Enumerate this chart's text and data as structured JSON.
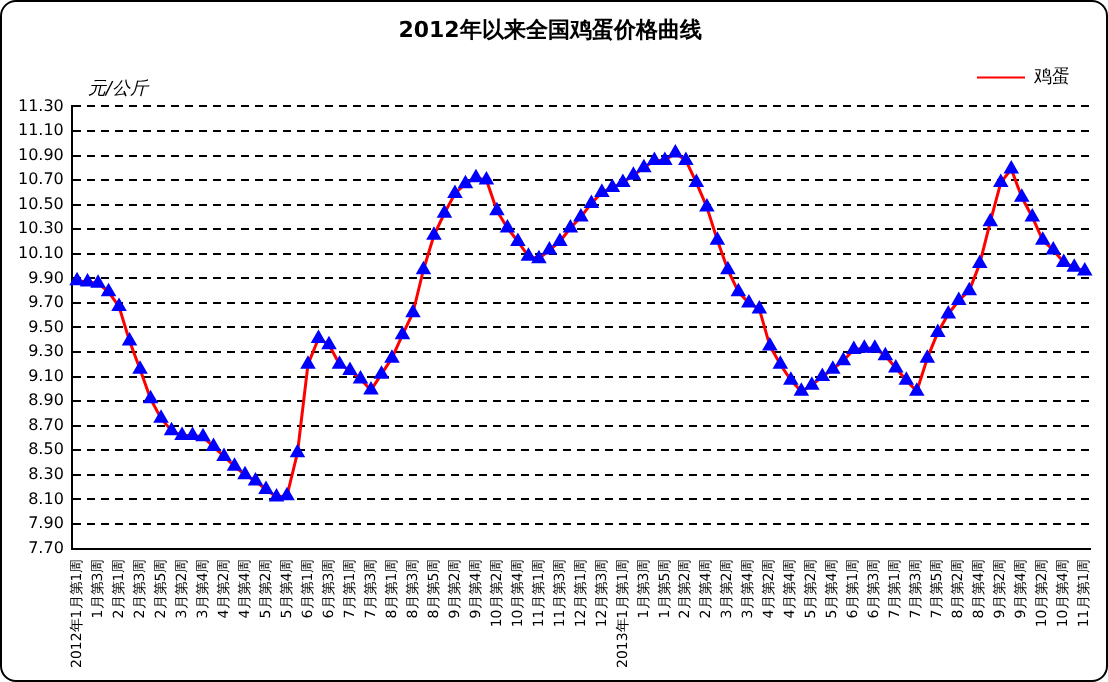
{
  "chart_data": {
    "type": "line",
    "title": "2012年以来全国鸡蛋价格曲线",
    "ylabel": "元/公斤",
    "categories": [
      "2012年1月第1周",
      null,
      "1月第3周",
      null,
      "2月第1周",
      null,
      "2月第3周",
      null,
      "2月第5周",
      null,
      "3月第2周",
      null,
      "3月第4周",
      null,
      "4月第2周",
      null,
      "4月第4周",
      null,
      "5月第2周",
      null,
      "5月第4周",
      null,
      "6月第1周",
      null,
      "6月第3周",
      null,
      "7月第1周",
      null,
      "7月第3周",
      null,
      "8月第1周",
      null,
      "8月第3周",
      null,
      "8月第5周",
      null,
      "9月第2周",
      null,
      "9月第4周",
      null,
      "10月第2周",
      null,
      "10月第4周",
      null,
      "11月第1周",
      null,
      "11月第3周",
      null,
      "12月第1周",
      null,
      "12月第3周",
      null,
      "2013年1月第1周",
      null,
      "1月第3周",
      null,
      "1月第5周",
      null,
      "2月第2周",
      null,
      "2月第4周",
      null,
      "3月第2周",
      null,
      "3月第4周",
      null,
      "4月第2周",
      null,
      "4月第4周",
      null,
      "5月第2周",
      null,
      "5月第4周",
      null,
      "6月第1周",
      null,
      "6月第3周",
      null,
      "7月第1周",
      null,
      "7月第3周",
      null,
      "7月第5周",
      null,
      "8月第2周",
      null,
      "8月第4周",
      null,
      "9月第2周",
      null,
      "9月第4周",
      null,
      "10月第2周",
      null,
      "10月第4周",
      null,
      "11月第1周"
    ],
    "series": [
      {
        "name": "鸡蛋",
        "color": "#0000ff",
        "values": [
          9.88,
          9.87,
          9.86,
          9.79,
          9.67,
          9.39,
          9.16,
          8.92,
          8.76,
          8.66,
          8.62,
          8.62,
          8.61,
          8.53,
          8.45,
          8.37,
          8.3,
          8.25,
          8.18,
          8.12,
          8.13,
          8.48,
          9.2,
          9.41,
          9.36,
          9.2,
          9.15,
          9.08,
          8.99,
          9.12,
          9.25,
          9.44,
          9.62,
          9.97,
          10.25,
          10.43,
          10.59,
          10.67,
          10.72,
          10.7,
          10.45,
          10.31,
          10.2,
          10.08,
          10.06,
          10.13,
          10.2,
          10.31,
          10.4,
          10.51,
          10.6,
          10.64,
          10.68,
          10.74,
          10.8,
          10.86,
          10.86,
          10.92,
          10.86,
          10.68,
          10.48,
          10.21,
          9.97,
          9.79,
          9.7,
          9.65,
          9.35,
          9.2,
          9.07,
          8.98,
          9.03,
          9.1,
          9.16,
          9.23,
          9.32,
          9.33,
          9.33,
          9.27,
          9.17,
          9.07,
          8.98,
          9.25,
          9.46,
          9.61,
          9.72,
          9.8,
          10.02,
          10.36,
          10.68,
          10.79,
          10.56,
          10.4,
          10.21,
          10.13,
          10.03,
          9.99,
          9.96
        ]
      }
    ],
    "ylim": [
      7.7,
      11.3
    ],
    "yticks": [
      {
        "value": 7.7,
        "label": "7.70"
      },
      {
        "value": 7.9,
        "label": "7.90"
      },
      {
        "value": 8.1,
        "label": "8.10"
      },
      {
        "value": 8.3,
        "label": "8.30"
      },
      {
        "value": 8.5,
        "label": "8.50"
      },
      {
        "value": 8.7,
        "label": "8.70"
      },
      {
        "value": 8.9,
        "label": "8.90"
      },
      {
        "value": 9.1,
        "label": "9.10"
      },
      {
        "value": 9.3,
        "label": "9.30"
      },
      {
        "value": 9.5,
        "label": "9.50"
      },
      {
        "value": 9.7,
        "label": "9.70"
      },
      {
        "value": 9.9,
        "label": "9.90"
      },
      {
        "value": 10.1,
        "label": "10.10"
      },
      {
        "value": 10.3,
        "label": "10.30"
      },
      {
        "value": 10.5,
        "label": "10.50"
      },
      {
        "value": 10.7,
        "label": "10.70"
      },
      {
        "value": 10.9,
        "label": "10.90"
      },
      {
        "value": 11.1,
        "label": "11.10"
      },
      {
        "value": 11.3,
        "label": "11.30"
      }
    ],
    "grid": "y",
    "legend": "top right",
    "marker": "triangle",
    "line_style": "solid"
  }
}
